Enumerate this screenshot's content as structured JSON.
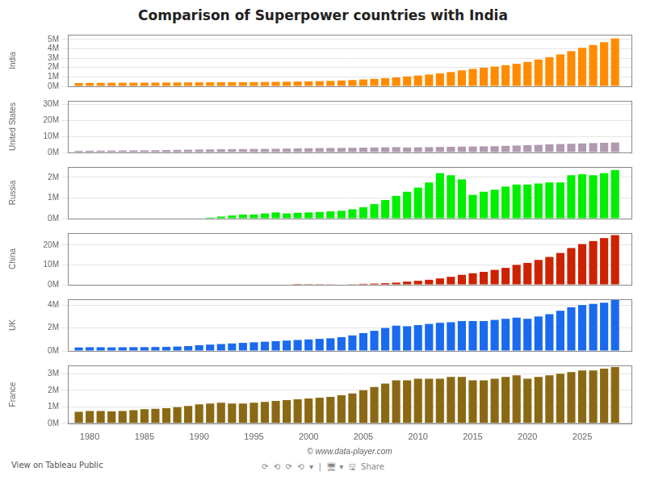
{
  "chart_data": [
    {
      "type": "bar",
      "title": "Comparison of Superpower countries with India",
      "ylabel": "India",
      "x": [
        1979,
        1980,
        1981,
        1982,
        1983,
        1984,
        1985,
        1986,
        1987,
        1988,
        1989,
        1990,
        1991,
        1992,
        1993,
        1994,
        1995,
        1996,
        1997,
        1998,
        1999,
        2000,
        2001,
        2002,
        2003,
        2004,
        2005,
        2006,
        2007,
        2008,
        2009,
        2010,
        2011,
        2012,
        2013,
        2014,
        2015,
        2016,
        2017,
        2018,
        2019,
        2020,
        2021,
        2022,
        2023,
        2024,
        2025,
        2026,
        2027,
        2028
      ],
      "values": [
        350000,
        360000,
        370000,
        375000,
        380000,
        385000,
        390000,
        395000,
        400000,
        410000,
        415000,
        420000,
        425000,
        430000,
        435000,
        440000,
        450000,
        460000,
        475000,
        490000,
        510000,
        530000,
        550000,
        580000,
        620000,
        670000,
        730000,
        790000,
        870000,
        950000,
        1050000,
        1150000,
        1250000,
        1380000,
        1520000,
        1700000,
        1850000,
        1980000,
        2100000,
        2250000,
        2400000,
        2600000,
        2850000,
        3100000,
        3400000,
        3750000,
        4100000,
        4400000,
        4700000,
        5100000
      ],
      "color": "#ff8c00",
      "xlim": [
        1978,
        2029.5
      ],
      "ylim": [
        0,
        5500000
      ],
      "yticks": [
        {
          "value": 0,
          "label": "0M"
        },
        {
          "value": 1000000,
          "label": "1M"
        },
        {
          "value": 2000000,
          "label": "2M"
        },
        {
          "value": 3000000,
          "label": "3M"
        },
        {
          "value": 4000000,
          "label": "4M"
        },
        {
          "value": 5000000,
          "label": "5M"
        }
      ],
      "grid": "y",
      "tick_labels": "y"
    },
    {
      "type": "bar",
      "ylabel": "United States",
      "x": [
        1979,
        1980,
        1981,
        1982,
        1983,
        1984,
        1985,
        1986,
        1987,
        1988,
        1989,
        1990,
        1991,
        1992,
        1993,
        1994,
        1995,
        1996,
        1997,
        1998,
        1999,
        2000,
        2001,
        2002,
        2003,
        2004,
        2005,
        2006,
        2007,
        2008,
        2009,
        2010,
        2011,
        2012,
        2013,
        2014,
        2015,
        2016,
        2017,
        2018,
        2019,
        2020,
        2021,
        2022,
        2023,
        2024,
        2025,
        2026,
        2027,
        2028
      ],
      "values": [
        1000000,
        1100000,
        1150000,
        1200000,
        1250000,
        1300000,
        1350000,
        1400000,
        1500000,
        1600000,
        1700000,
        1800000,
        1900000,
        2000000,
        2050000,
        2100000,
        2150000,
        2200000,
        2300000,
        2400000,
        2500000,
        2600000,
        2700000,
        2750000,
        2800000,
        2900000,
        3000000,
        3100000,
        3200000,
        3300000,
        3100000,
        3200000,
        3300000,
        3400000,
        3500000,
        3600000,
        3700000,
        3800000,
        3900000,
        4100000,
        4300000,
        4500000,
        4700000,
        5000000,
        5200000,
        5400000,
        5600000,
        5800000,
        6000000,
        6200000
      ],
      "color": "#b09ab0",
      "xlim": [
        1978,
        2029.5
      ],
      "ylim": [
        0,
        32000000
      ],
      "yticks": [
        {
          "value": 0,
          "label": "0M"
        },
        {
          "value": 10000000,
          "label": "10M"
        },
        {
          "value": 20000000,
          "label": "20M"
        },
        {
          "value": 30000000,
          "label": "30M"
        }
      ],
      "grid": "y",
      "tick_labels": "y"
    },
    {
      "type": "bar",
      "ylabel": "Russia",
      "x": [
        1979,
        1980,
        1981,
        1982,
        1983,
        1984,
        1985,
        1986,
        1987,
        1988,
        1989,
        1990,
        1991,
        1992,
        1993,
        1994,
        1995,
        1996,
        1997,
        1998,
        1999,
        2000,
        2001,
        2002,
        2003,
        2004,
        2005,
        2006,
        2007,
        2008,
        2009,
        2010,
        2011,
        2012,
        2013,
        2014,
        2015,
        2016,
        2017,
        2018,
        2019,
        2020,
        2021,
        2022,
        2023,
        2024,
        2025,
        2026,
        2027,
        2028
      ],
      "values": [
        0,
        0,
        0,
        0,
        0,
        0,
        0,
        0,
        0,
        0,
        0,
        0,
        50000,
        100000,
        150000,
        200000,
        200000,
        250000,
        300000,
        250000,
        280000,
        300000,
        320000,
        350000,
        380000,
        450000,
        550000,
        700000,
        900000,
        1100000,
        1300000,
        1500000,
        1750000,
        2200000,
        2100000,
        1900000,
        1150000,
        1300000,
        1400000,
        1550000,
        1650000,
        1650000,
        1700000,
        1750000,
        1750000,
        2100000,
        2150000,
        2100000,
        2200000,
        2350000
      ],
      "color": "#00ee00",
      "xlim": [
        1978,
        2029.5
      ],
      "ylim": [
        0,
        2500000
      ],
      "yticks": [
        {
          "value": 0,
          "label": "0M"
        },
        {
          "value": 1000000,
          "label": "1M"
        },
        {
          "value": 2000000,
          "label": "2M"
        }
      ],
      "grid": "y",
      "tick_labels": "y"
    },
    {
      "type": "bar",
      "ylabel": "China",
      "x": [
        1979,
        1980,
        1981,
        1982,
        1983,
        1984,
        1985,
        1986,
        1987,
        1988,
        1989,
        1990,
        1991,
        1992,
        1993,
        1994,
        1995,
        1996,
        1997,
        1998,
        1999,
        2000,
        2001,
        2002,
        2003,
        2004,
        2005,
        2006,
        2007,
        2008,
        2009,
        2010,
        2011,
        2012,
        2013,
        2014,
        2015,
        2016,
        2017,
        2018,
        2019,
        2020,
        2021,
        2022,
        2023,
        2024,
        2025,
        2026,
        2027,
        2028
      ],
      "values": [
        0,
        0,
        0,
        0,
        0,
        0,
        0,
        0,
        0,
        0,
        0,
        0,
        0,
        0,
        0,
        0,
        0,
        0,
        0,
        0,
        20000,
        50000,
        80000,
        130000,
        200000,
        300000,
        450000,
        600000,
        800000,
        1100000,
        1600000,
        2000000,
        2500000,
        3200000,
        4000000,
        5000000,
        5800000,
        6500000,
        7500000,
        8500000,
        10000000,
        11000000,
        12500000,
        14000000,
        16000000,
        18500000,
        20500000,
        22000000,
        23500000,
        25000000
      ],
      "color": "#cc2200",
      "xlim": [
        1978,
        2029.5
      ],
      "ylim": [
        0,
        26000000
      ],
      "yticks": [
        {
          "value": 0,
          "label": "0M"
        },
        {
          "value": 10000000,
          "label": "10M"
        },
        {
          "value": 20000000,
          "label": "20M"
        }
      ],
      "grid": "y",
      "tick_labels": "y"
    },
    {
      "type": "bar",
      "ylabel": "UK",
      "x": [
        1979,
        1980,
        1981,
        1982,
        1983,
        1984,
        1985,
        1986,
        1987,
        1988,
        1989,
        1990,
        1991,
        1992,
        1993,
        1994,
        1995,
        1996,
        1997,
        1998,
        1999,
        2000,
        2001,
        2002,
        2003,
        2004,
        2005,
        2006,
        2007,
        2008,
        2009,
        2010,
        2011,
        2012,
        2013,
        2014,
        2015,
        2016,
        2017,
        2018,
        2019,
        2020,
        2021,
        2022,
        2023,
        2024,
        2025,
        2026,
        2027,
        2028
      ],
      "values": [
        300000,
        320000,
        320000,
        310000,
        320000,
        325000,
        330000,
        340000,
        350000,
        380000,
        420000,
        500000,
        550000,
        600000,
        650000,
        700000,
        750000,
        800000,
        850000,
        900000,
        950000,
        1000000,
        1050000,
        1100000,
        1200000,
        1350000,
        1550000,
        1750000,
        2000000,
        2200000,
        2150000,
        2250000,
        2350000,
        2450000,
        2500000,
        2600000,
        2600000,
        2600000,
        2700000,
        2800000,
        2900000,
        2800000,
        3000000,
        3200000,
        3500000,
        3800000,
        4000000,
        4100000,
        4200000,
        4500000
      ],
      "color": "#1a6aee",
      "xlim": [
        1978,
        2029.5
      ],
      "ylim": [
        0,
        4500000
      ],
      "yticks": [
        {
          "value": 0,
          "label": "0M"
        },
        {
          "value": 2000000,
          "label": "2M"
        },
        {
          "value": 4000000,
          "label": "4M"
        }
      ],
      "grid": "y",
      "tick_labels": "y"
    },
    {
      "type": "bar",
      "ylabel": "France",
      "xlabel": "© www.data-player.com",
      "x": [
        1979,
        1980,
        1981,
        1982,
        1983,
        1984,
        1985,
        1986,
        1987,
        1988,
        1989,
        1990,
        1991,
        1992,
        1993,
        1994,
        1995,
        1996,
        1997,
        1998,
        1999,
        2000,
        2001,
        2002,
        2003,
        2004,
        2005,
        2006,
        2007,
        2008,
        2009,
        2010,
        2011,
        2012,
        2013,
        2014,
        2015,
        2016,
        2017,
        2018,
        2019,
        2020,
        2021,
        2022,
        2023,
        2024,
        2025,
        2026,
        2027,
        2028
      ],
      "values": [
        700000,
        750000,
        750000,
        720000,
        740000,
        800000,
        850000,
        880000,
        920000,
        980000,
        1050000,
        1150000,
        1200000,
        1250000,
        1200000,
        1200000,
        1250000,
        1300000,
        1350000,
        1400000,
        1450000,
        1500000,
        1550000,
        1600000,
        1700000,
        1800000,
        2000000,
        2200000,
        2400000,
        2600000,
        2600000,
        2700000,
        2700000,
        2700000,
        2800000,
        2800000,
        2600000,
        2600000,
        2700000,
        2800000,
        2900000,
        2700000,
        2800000,
        2900000,
        3000000,
        3100000,
        3200000,
        3200000,
        3300000,
        3400000
      ],
      "color": "#8b6914",
      "xlim": [
        1978,
        2029.5
      ],
      "ylim": [
        0,
        3500000
      ],
      "xticks": [
        1980,
        1985,
        1990,
        1995,
        2000,
        2005,
        2010,
        2015,
        2020,
        2025
      ],
      "yticks": [
        {
          "value": 0,
          "label": "0M"
        },
        {
          "value": 1000000,
          "label": "1M"
        },
        {
          "value": 2000000,
          "label": "2M"
        },
        {
          "value": 3000000,
          "label": "3M"
        }
      ],
      "grid": "y",
      "annotations": [
        "View on Tableau Public",
        "⟳  ⟲  ⟳  ⟲  ▾  |  🖥 ▾  🖫  Share"
      ]
    }
  ]
}
